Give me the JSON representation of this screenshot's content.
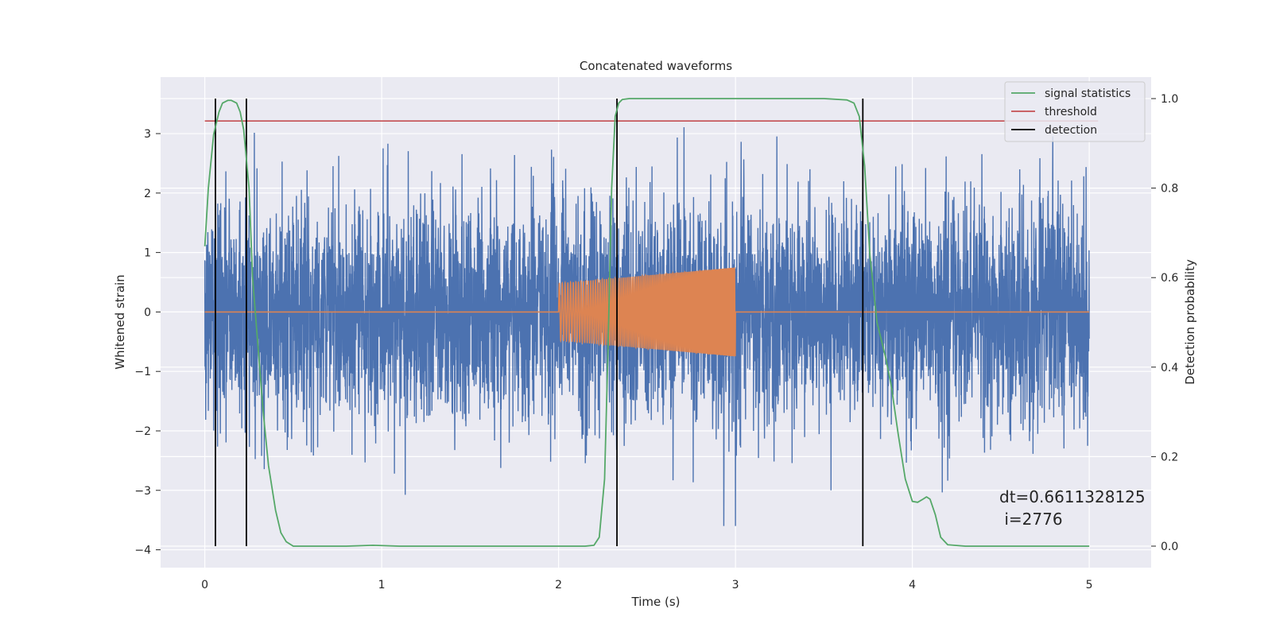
{
  "chart_data": {
    "type": "line",
    "title": "Concatenated waveforms",
    "xlabel": "Time (s)",
    "ylabel": "Whitened strain",
    "ylabel_right": "Detection probability",
    "xlim": [
      -0.25,
      5.35
    ],
    "ylim_left": [
      -4.3,
      3.95
    ],
    "ylim_right": [
      -0.048,
      1.048
    ],
    "x_ticks": [
      0,
      1,
      2,
      3,
      4,
      5
    ],
    "y_ticks_left": [
      -4,
      -3,
      -2,
      -1,
      0,
      1,
      2,
      3
    ],
    "y_ticks_right": [
      0.0,
      0.2,
      0.4,
      0.6,
      0.8,
      1.0
    ],
    "x_tick_labels": [
      "0",
      "1",
      "2",
      "3",
      "4",
      "5"
    ],
    "y_tick_labels_left": [
      "−4",
      "−3",
      "−2",
      "−1",
      "0",
      "1",
      "2",
      "3"
    ],
    "y_tick_labels_right": [
      "0.0",
      "0.2",
      "0.4",
      "0.6",
      "0.8",
      "1.0"
    ],
    "grid": true,
    "legend_position": "upper-right",
    "colors": {
      "background": "#eaeaf2",
      "grid": "#ffffff",
      "noise": "#4c72b0",
      "injected": "#dd8452",
      "statistics": "#55a868",
      "threshold": "#c44e52",
      "detection": "#000000"
    },
    "series": [
      {
        "name": "",
        "description": "whitened strain noise",
        "x_range": [
          0,
          5
        ],
        "amplitude_typical": 1.2,
        "amplitude_max": 3.6,
        "axis": "left"
      },
      {
        "name": "",
        "description": "injected chirp waveform",
        "x_range": [
          2.0,
          3.0
        ],
        "amplitude_start": 0.48,
        "amplitude_end": 0.75,
        "axis": "left"
      },
      {
        "name": "signal statistics",
        "axis": "right",
        "x": [
          0.0,
          0.02,
          0.05,
          0.08,
          0.1,
          0.13,
          0.15,
          0.18,
          0.2,
          0.22,
          0.25,
          0.27,
          0.3,
          0.33,
          0.36,
          0.4,
          0.43,
          0.46,
          0.5,
          0.6,
          0.8,
          0.95,
          1.1,
          1.5,
          2.0,
          2.15,
          2.2,
          2.23,
          2.26,
          2.28,
          2.3,
          2.32,
          2.34,
          2.36,
          2.4,
          2.5,
          3.0,
          3.5,
          3.63,
          3.67,
          3.7,
          3.73,
          3.76,
          3.8,
          3.85,
          3.88,
          3.92,
          3.96,
          4.0,
          4.03,
          4.06,
          4.08,
          4.1,
          4.13,
          4.16,
          4.2,
          4.3,
          5.0
        ],
        "y": [
          0.67,
          0.8,
          0.92,
          0.97,
          0.99,
          0.996,
          0.996,
          0.99,
          0.97,
          0.93,
          0.8,
          0.6,
          0.45,
          0.3,
          0.18,
          0.08,
          0.03,
          0.01,
          0.0,
          0.0,
          0.0,
          0.002,
          0.0,
          0.0,
          0.0,
          0.0,
          0.002,
          0.02,
          0.15,
          0.45,
          0.8,
          0.96,
          0.99,
          0.998,
          1.0,
          1.0,
          1.0,
          1.0,
          0.997,
          0.99,
          0.96,
          0.85,
          0.65,
          0.5,
          0.42,
          0.36,
          0.25,
          0.15,
          0.1,
          0.098,
          0.105,
          0.11,
          0.105,
          0.07,
          0.02,
          0.003,
          0.0,
          0.0
        ]
      },
      {
        "name": "threshold",
        "axis": "right",
        "value": 0.95
      },
      {
        "name": "detection",
        "axis": "right",
        "x_positions": [
          0.06,
          0.235,
          2.33,
          3.72
        ],
        "y_range": [
          0.0,
          1.0
        ]
      }
    ],
    "annotations": [
      "dt=0.6611328125",
      " i=2776"
    ]
  }
}
